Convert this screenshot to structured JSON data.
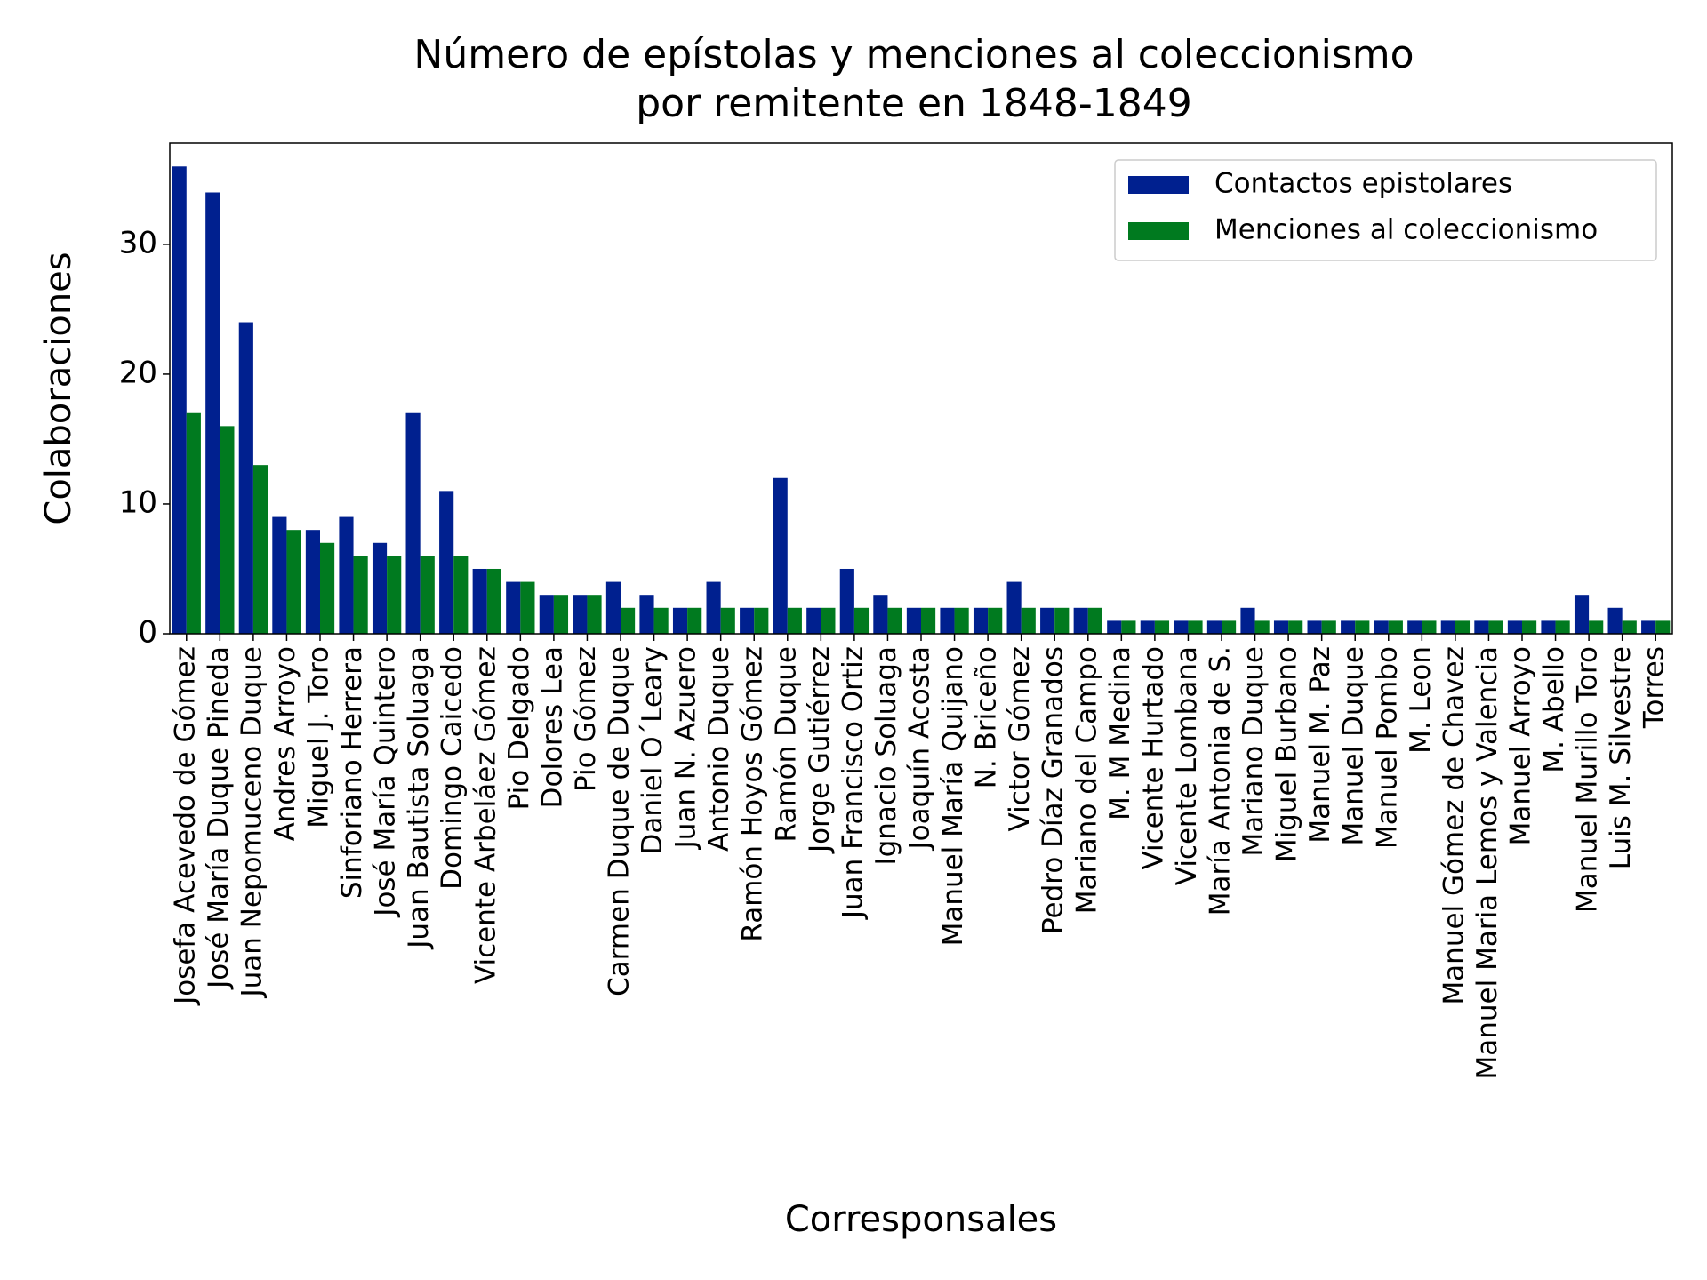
{
  "chart_data": {
    "type": "bar",
    "title": [
      "Número de epístolas y menciones al coleccionismo",
      "por remitente en 1848-1849"
    ],
    "x_label": "Corresponsales",
    "y_label": "Colaboraciones",
    "categories": [
      "Josefa Acevedo de Gómez",
      "José María Duque Pineda",
      "Juan Nepomuceno Duque",
      "Andres Arroyo",
      "Miguel J. Toro",
      "Sinforiano Herrera",
      "José María Quintero",
      "Juan Bautista Soluaga",
      "Domingo Caicedo",
      "Vicente Arbeláez Gómez",
      "Pio Delgado",
      "Dolores Lea",
      "Pio Gómez",
      "Carmen Duque de Duque",
      "Daniel O´Leary",
      "Juan N. Azuero",
      "Antonio Duque",
      "Ramón Hoyos Gómez",
      "Ramón Duque",
      "Jorge Gutiérrez",
      "Juan Francisco Ortiz",
      "Ignacio Soluaga",
      "Joaquín Acosta",
      "Manuel María Quijano",
      "N. Briceño",
      "Victor Gómez",
      "Pedro Díaz Granados",
      "Mariano del Campo",
      "M. M Medina",
      "Vicente Hurtado",
      "Vicente Lombana",
      "María Antonia de S.",
      "Mariano Duque",
      "Miguel Burbano",
      "Manuel M. Paz",
      "Manuel Duque",
      "Manuel Pombo",
      "M. Leon",
      "Manuel Gómez de Chavez",
      "Manuel Maria Lemos y Valencia",
      "Manuel Arroyo",
      "M. Abello",
      "Manuel Murillo Toro",
      "Luis M. Silvestre",
      "Torres"
    ],
    "series": [
      {
        "name": "Contactos epistolares",
        "color": "#00208f",
        "values": [
          36,
          34,
          24,
          9,
          8,
          9,
          7,
          17,
          11,
          5,
          4,
          3,
          3,
          4,
          3,
          2,
          4,
          2,
          12,
          2,
          5,
          3,
          2,
          2,
          2,
          4,
          2,
          2,
          1,
          1,
          1,
          1,
          2,
          1,
          1,
          1,
          1,
          1,
          1,
          1,
          1,
          1,
          3,
          2,
          1
        ]
      },
      {
        "name": "Menciones al coleccionismo",
        "color": "#007a1f",
        "values": [
          17,
          16,
          13,
          8,
          7,
          6,
          6,
          6,
          6,
          5,
          4,
          3,
          3,
          2,
          2,
          2,
          2,
          2,
          2,
          2,
          2,
          2,
          2,
          2,
          2,
          2,
          2,
          2,
          1,
          1,
          1,
          1,
          1,
          1,
          1,
          1,
          1,
          1,
          1,
          1,
          1,
          1,
          1,
          1,
          1
        ]
      }
    ],
    "ylim": [
      0,
      37.8
    ],
    "yticks": [
      0,
      10,
      20,
      30
    ],
    "grid": false,
    "legend": "upper right"
  }
}
